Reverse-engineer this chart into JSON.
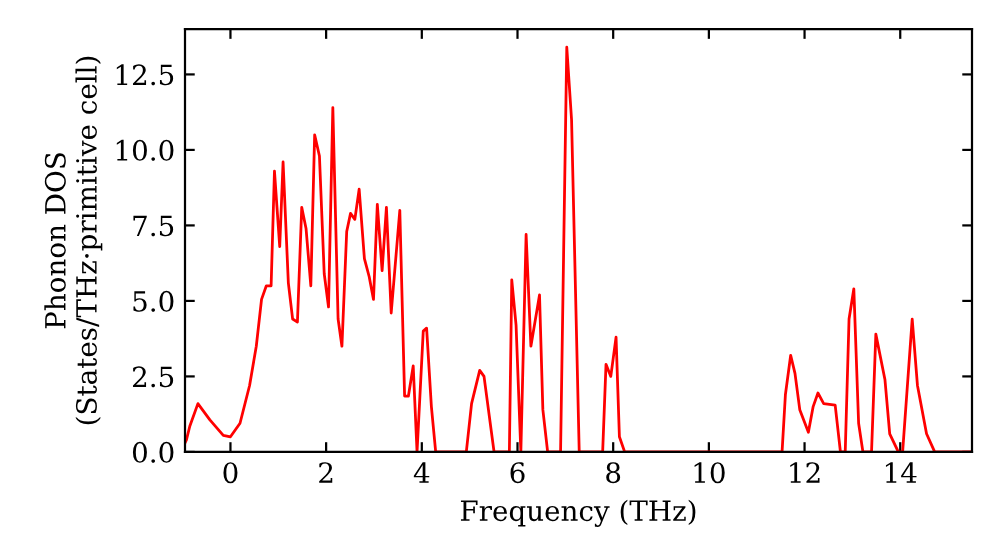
{
  "chart_data": {
    "type": "line",
    "xlabel": "Frequency (THz)",
    "ylabel": "Phonon DOS\n(States/THz·primitive cell)",
    "x": [
      -0.95,
      -0.92,
      -0.85,
      -0.68,
      -0.43,
      -0.15,
      0,
      0.2,
      0.4,
      0.54,
      0.65,
      0.75,
      0.85,
      0.92,
      1.03,
      1.1,
      1.21,
      1.3,
      1.4,
      1.49,
      1.58,
      1.68,
      1.76,
      1.86,
      1.96,
      2.05,
      2.14,
      2.25,
      2.33,
      2.43,
      2.51,
      2.6,
      2.69,
      2.8,
      2.9,
      2.99,
      3.07,
      3.17,
      3.26,
      3.36,
      3.54,
      3.64,
      3.72,
      3.82,
      3.9,
      4.03,
      4.1,
      4.2,
      4.29,
      4.93,
      5.04,
      5.21,
      5.3,
      5.51,
      5.83,
      5.88,
      5.97,
      6.07,
      6.18,
      6.28,
      6.46,
      6.53,
      6.63,
      6.9,
      7.03,
      7.13,
      7.29,
      7.78,
      7.85,
      7.95,
      8.06,
      8.13,
      8.24,
      11.53,
      11.6,
      11.71,
      11.8,
      11.9,
      12.08,
      12.18,
      12.28,
      12.4,
      12.64,
      12.75,
      12.85,
      12.93,
      13.03,
      13.13,
      13.22,
      13.4,
      13.49,
      13.68,
      13.78,
      13.96,
      14.05,
      14.25,
      14.36,
      14.55,
      14.72,
      15.49
    ],
    "series": [
      {
        "color": "#ff0000",
        "values": [
          0.3,
          0.4,
          0.85,
          1.6,
          1.06,
          0.55,
          0.5,
          0.95,
          2.2,
          3.5,
          5.05,
          5.5,
          5.5,
          9.3,
          6.8,
          9.6,
          5.6,
          4.4,
          4.3,
          8.1,
          7.4,
          5.5,
          10.5,
          9.8,
          5.9,
          4.8,
          11.4,
          4.4,
          3.5,
          7.3,
          7.9,
          7.7,
          8.7,
          6.4,
          5.8,
          5.05,
          8.2,
          6.0,
          8.1,
          4.6,
          8.0,
          1.85,
          1.85,
          2.85,
          0,
          4.0,
          4.1,
          1.5,
          0,
          0,
          1.6,
          2.7,
          2.5,
          0,
          0,
          5.7,
          4.2,
          0,
          7.2,
          3.5,
          5.2,
          1.4,
          0,
          0,
          13.4,
          11.0,
          0,
          0,
          2.9,
          2.5,
          3.8,
          0.5,
          0,
          0,
          1.9,
          3.2,
          2.6,
          1.4,
          0.65,
          1.5,
          1.95,
          1.6,
          1.55,
          0,
          0,
          4.4,
          5.4,
          0.95,
          0,
          0,
          3.9,
          2.4,
          0.6,
          0,
          0,
          4.4,
          2.2,
          0.6,
          0,
          0
        ]
      }
    ],
    "xlim": [
      -0.95,
      15.5
    ],
    "ylim": [
      0,
      14.0
    ],
    "xticks": [
      0,
      2,
      4,
      6,
      8,
      10,
      12,
      14
    ],
    "yticks": [
      {
        "value": 0,
        "label": "0.0"
      },
      2.5,
      {
        "value": 5,
        "label": "5.0"
      },
      7.5,
      {
        "value": 10,
        "label": "10.0"
      },
      12.5
    ],
    "grid": false,
    "legend": false,
    "marker": "none",
    "line_style": "solid"
  }
}
